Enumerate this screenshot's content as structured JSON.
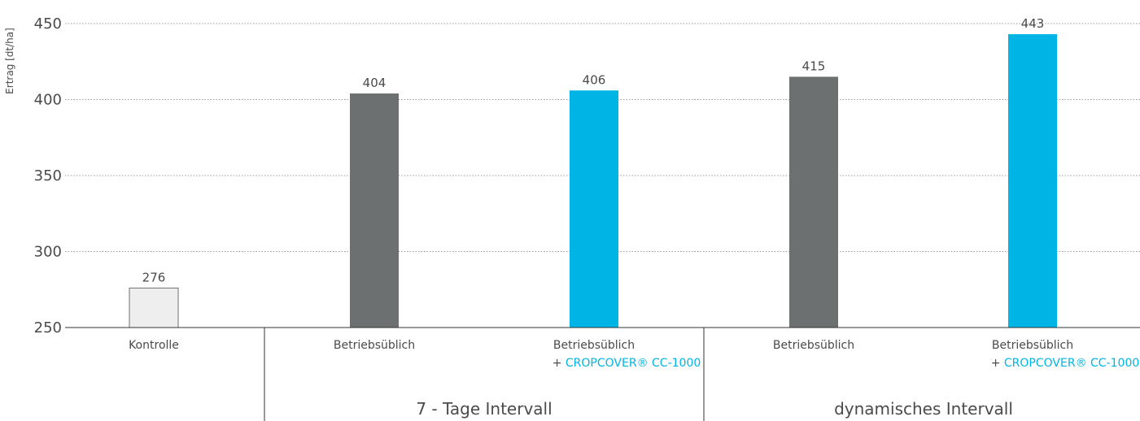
{
  "chart_data": {
    "type": "bar",
    "ylabel": "Ertrag [dt/ha]",
    "ylim": [
      250,
      450
    ],
    "yticks": [
      250,
      300,
      350,
      400,
      450
    ],
    "grid": true,
    "values": [
      276,
      404,
      406,
      415,
      443
    ],
    "categories": [
      {
        "line1": "Kontrolle",
        "line2_prefix": "",
        "line2_product": ""
      },
      {
        "line1": "Betriebsüblich",
        "line2_prefix": "",
        "line2_product": ""
      },
      {
        "line1": "Betriebsüblich",
        "line2_prefix": "+ ",
        "line2_product": "CROPCOVER® CC-1000"
      },
      {
        "line1": "Betriebsüblich",
        "line2_prefix": "",
        "line2_product": ""
      },
      {
        "line1": "Betriebsüblich",
        "line2_prefix": "+ ",
        "line2_product": "CROPCOVER® CC-1000"
      }
    ],
    "bar_colors": [
      "#eeeeee",
      "#6d7070",
      "#00b4e6",
      "#6d7070",
      "#00b4e6"
    ],
    "bar_stroke": [
      "#6d7070",
      "none",
      "none",
      "none",
      "none"
    ],
    "groups": [
      "7 - Tage Intervall",
      "dynamisches Intervall"
    ],
    "accent_color": "#00b4e6"
  }
}
